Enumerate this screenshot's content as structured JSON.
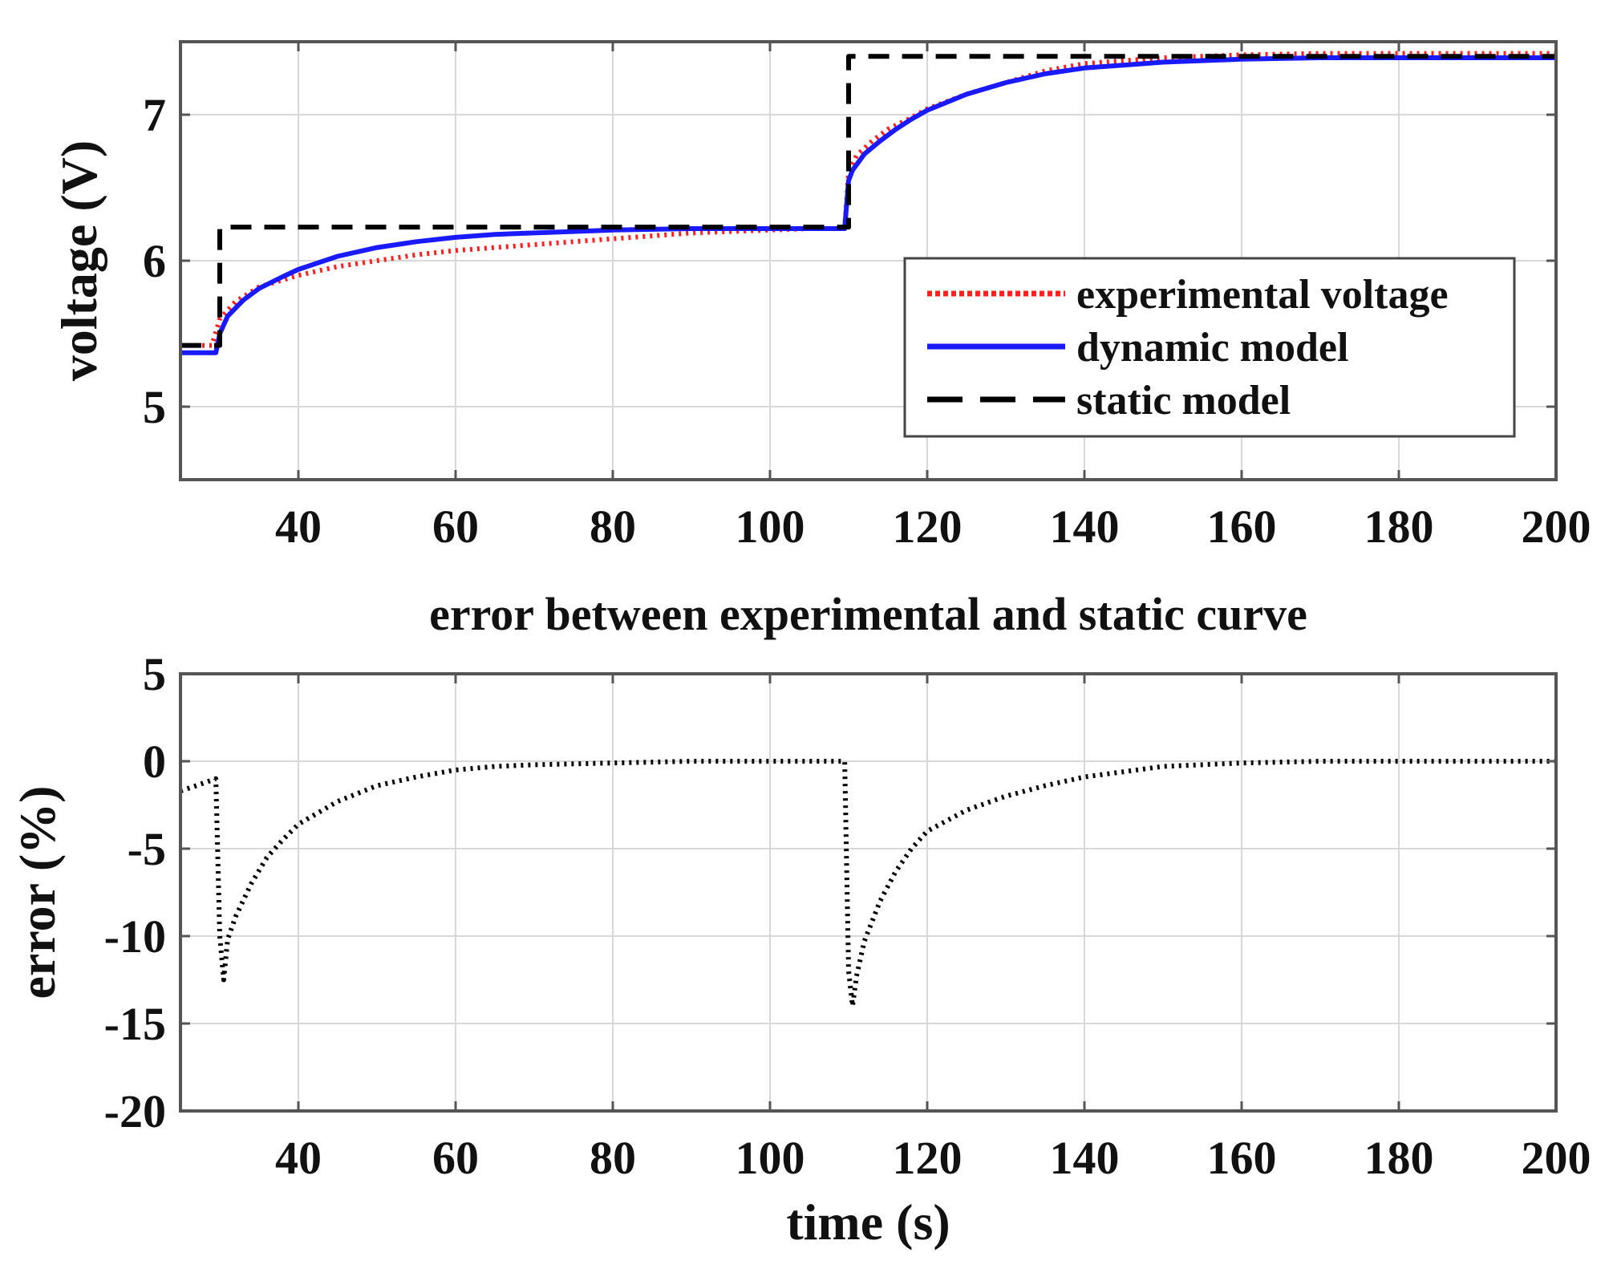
{
  "chart_data": [
    {
      "id": "voltage",
      "type": "line",
      "title": "",
      "xlabel": "",
      "ylabel": "voltage (V)",
      "xlim": [
        25,
        200
      ],
      "ylim": [
        4.5,
        7.5
      ],
      "xticks": [
        40,
        60,
        80,
        100,
        120,
        140,
        160,
        180,
        200
      ],
      "yticks": [
        5,
        6,
        7
      ],
      "grid": true,
      "legend_position": "lower-right",
      "colors": {
        "experimental": "#ff2020",
        "dynamic": "#1a1aff",
        "static": "#000000"
      },
      "series": [
        {
          "key": "experimental",
          "name": "experimental voltage",
          "style": "dotted",
          "color": "#ff2020",
          "x": [
            25,
            29,
            30,
            32,
            35,
            40,
            45,
            50,
            55,
            60,
            65,
            70,
            75,
            80,
            85,
            90,
            95,
            100,
            105,
            109.5,
            110,
            111,
            113,
            115,
            118,
            120,
            125,
            130,
            135,
            140,
            150,
            160,
            170,
            180,
            190,
            200
          ],
          "y": [
            5.42,
            5.42,
            5.6,
            5.72,
            5.82,
            5.9,
            5.96,
            6.0,
            6.04,
            6.07,
            6.09,
            6.11,
            6.13,
            6.15,
            6.17,
            6.19,
            6.2,
            6.21,
            6.22,
            6.22,
            6.6,
            6.72,
            6.82,
            6.9,
            6.98,
            7.04,
            7.14,
            7.22,
            7.3,
            7.35,
            7.39,
            7.41,
            7.42,
            7.42,
            7.42,
            7.42
          ]
        },
        {
          "key": "dynamic",
          "name": "dynamic model",
          "style": "solid",
          "color": "#1a1aff",
          "x": [
            25,
            29.5,
            30,
            31,
            33,
            35,
            38,
            40,
            45,
            50,
            55,
            60,
            65,
            70,
            80,
            90,
            100,
            109.5,
            110,
            110.5,
            112,
            114,
            116,
            118,
            120,
            125,
            130,
            135,
            140,
            150,
            160,
            170,
            180,
            190,
            200
          ],
          "y": [
            5.37,
            5.37,
            5.5,
            5.62,
            5.73,
            5.81,
            5.89,
            5.94,
            6.03,
            6.09,
            6.13,
            6.16,
            6.18,
            6.19,
            6.21,
            6.22,
            6.22,
            6.22,
            6.55,
            6.62,
            6.73,
            6.82,
            6.9,
            6.97,
            7.03,
            7.14,
            7.22,
            7.28,
            7.32,
            7.36,
            7.38,
            7.39,
            7.39,
            7.39,
            7.39
          ]
        },
        {
          "key": "static",
          "name": "static model",
          "style": "dashed",
          "color": "#000000",
          "x": [
            25,
            30,
            30,
            110,
            110,
            200
          ],
          "y": [
            5.42,
            5.42,
            6.23,
            6.23,
            7.4,
            7.4
          ]
        }
      ]
    },
    {
      "id": "error",
      "type": "line",
      "title": "error between experimental and static curve",
      "xlabel": "time (s)",
      "ylabel": "error (%)",
      "xlim": [
        25,
        200
      ],
      "ylim": [
        -20,
        5
      ],
      "xticks": [
        40,
        60,
        80,
        100,
        120,
        140,
        160,
        180,
        200
      ],
      "yticks": [
        5,
        0,
        -5,
        -10,
        -15,
        -20
      ],
      "grid": true,
      "series": [
        {
          "key": "error",
          "name": "error",
          "style": "dotted",
          "color": "#000000",
          "x": [
            25,
            27,
            29.5,
            30,
            30.5,
            31,
            32,
            34,
            36,
            38,
            40,
            45,
            50,
            55,
            60,
            65,
            70,
            80,
            90,
            100,
            105,
            109.5,
            110,
            110.5,
            111,
            112,
            114,
            116,
            118,
            120,
            125,
            130,
            135,
            140,
            145,
            150,
            160,
            170,
            180,
            190,
            200
          ],
          "y": [
            -1.7,
            -1.4,
            -1.0,
            -10.0,
            -12.5,
            -10.2,
            -8.9,
            -7.0,
            -5.5,
            -4.5,
            -3.6,
            -2.3,
            -1.4,
            -0.9,
            -0.5,
            -0.3,
            -0.2,
            -0.1,
            0,
            0,
            0,
            0,
            -12.0,
            -14.0,
            -12.3,
            -10.3,
            -8.0,
            -6.3,
            -5.0,
            -4.0,
            -2.8,
            -2.0,
            -1.4,
            -0.9,
            -0.6,
            -0.3,
            -0.1,
            0,
            0,
            0,
            0
          ]
        }
      ]
    }
  ]
}
